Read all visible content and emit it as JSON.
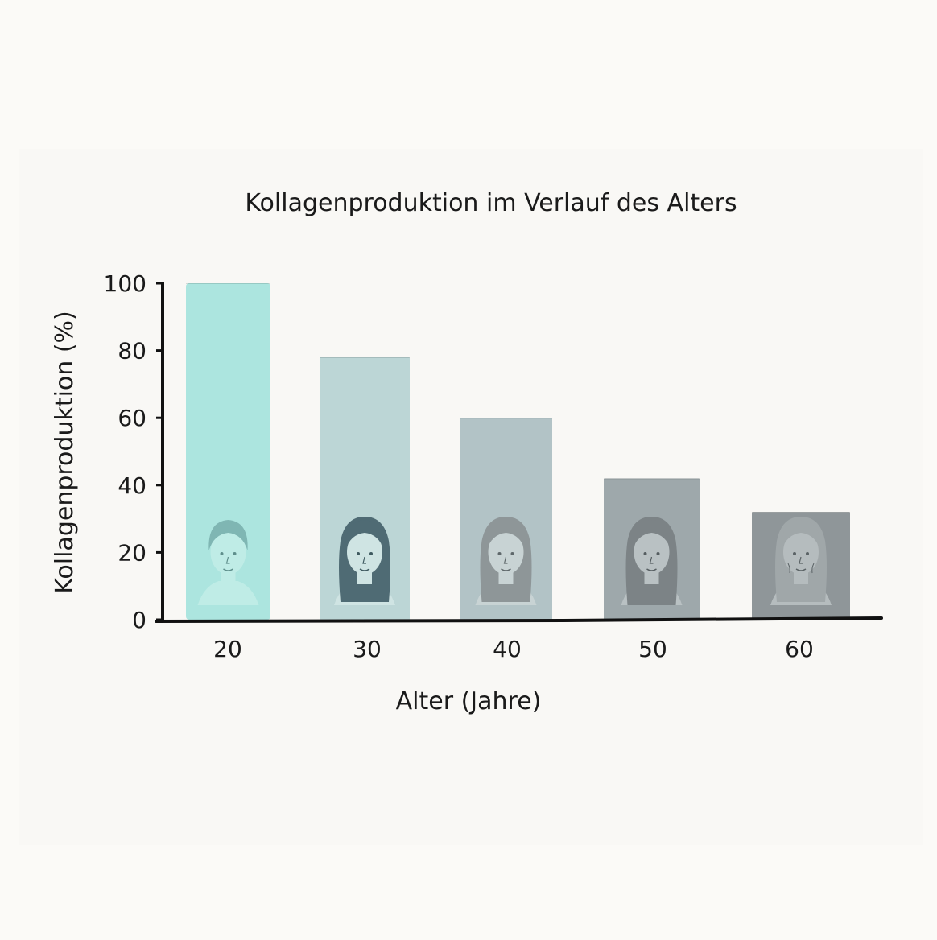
{
  "chart_data": {
    "type": "bar",
    "title": "Kollagenproduktion im Verlauf des Alters",
    "xlabel": "Alter (Jahre)",
    "ylabel": "Kollagenproduktion (%)",
    "categories": [
      "20",
      "30",
      "40",
      "50",
      "60"
    ],
    "values": [
      100,
      78,
      60,
      42,
      32
    ],
    "ylim": [
      0,
      100
    ],
    "yticks": [
      "0",
      "20",
      "40",
      "60",
      "80",
      "100"
    ],
    "grid": false,
    "legend": "none",
    "bar_colors": [
      "#ace5df",
      "#bcd6d6",
      "#b2c3c6",
      "#9ea8ab",
      "#8f9699"
    ],
    "bar_icons": [
      "young-face-icon",
      "young-woman-face-icon",
      "adult-woman-face-icon",
      "middle-aged-woman-face-icon",
      "older-woman-face-icon"
    ]
  }
}
